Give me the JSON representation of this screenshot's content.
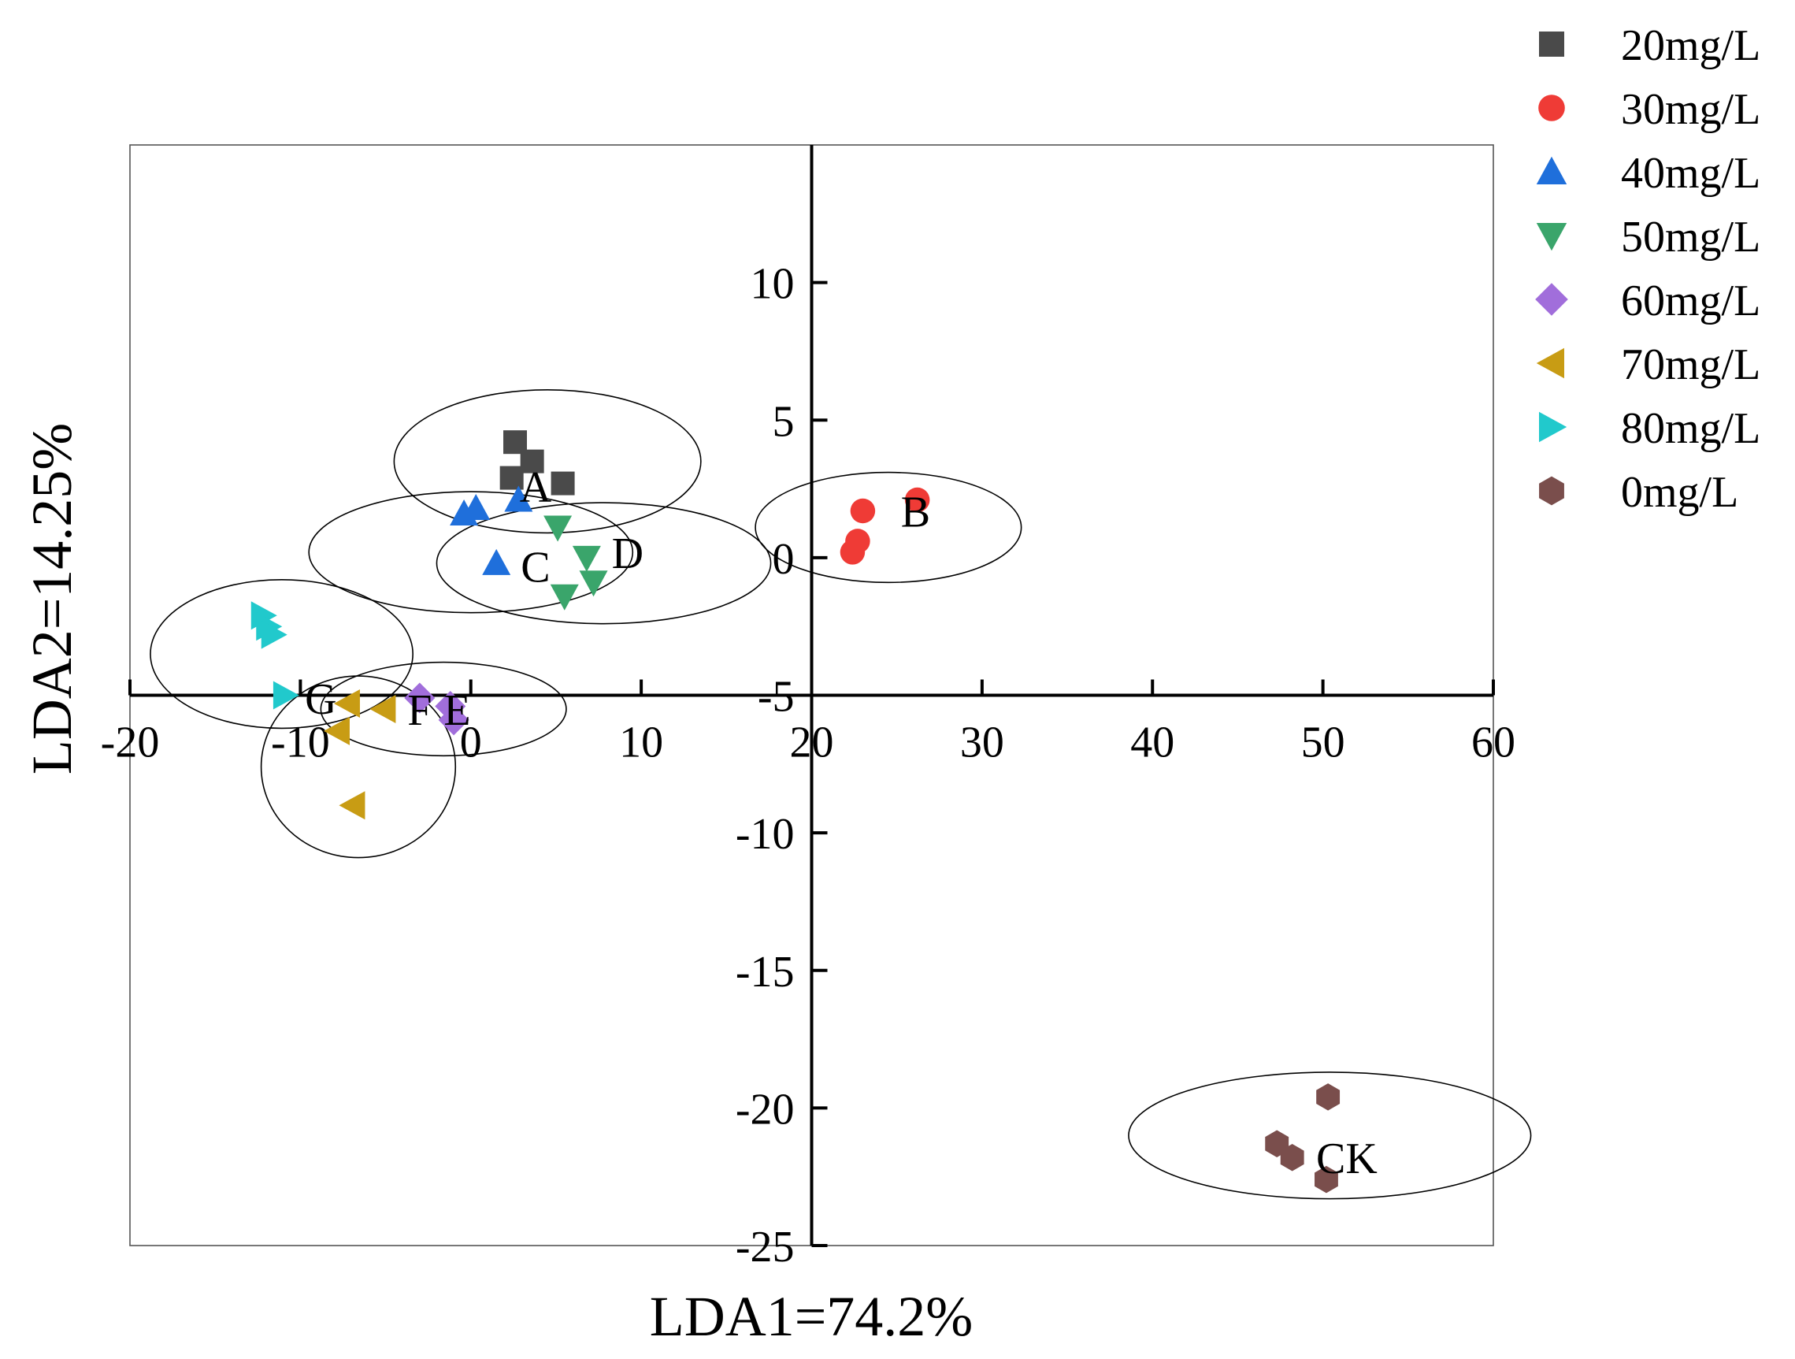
{
  "chart_data": {
    "type": "scatter",
    "xlabel": "LDA1=74.2%",
    "ylabel": "LDA2=14.25%",
    "xlim": [
      -20,
      60
    ],
    "ylim": [
      -25,
      15
    ],
    "x_ticks": [
      -20,
      -10,
      0,
      10,
      20,
      30,
      40,
      50,
      60
    ],
    "y_ticks": [
      -25,
      -20,
      -15,
      -10,
      -5,
      0,
      5,
      10
    ],
    "legend_position": "top-right",
    "series": [
      {
        "name": "20mg/L",
        "color": "#4a4a4a",
        "marker": "square",
        "points": [
          [
            2.6,
            4.2
          ],
          [
            3.6,
            3.5
          ],
          [
            2.4,
            2.9
          ],
          [
            5.4,
            2.7
          ]
        ]
      },
      {
        "name": "30mg/L",
        "color": "#ef3b36",
        "marker": "circle",
        "points": [
          [
            23.0,
            1.7
          ],
          [
            26.2,
            2.1
          ],
          [
            22.7,
            0.6
          ],
          [
            22.4,
            0.2
          ]
        ]
      },
      {
        "name": "40mg/L",
        "color": "#1f6fdb",
        "marker": "triangle-up",
        "points": [
          [
            -0.4,
            1.6
          ],
          [
            0.3,
            1.8
          ],
          [
            2.8,
            2.1
          ],
          [
            1.5,
            -0.2
          ]
        ]
      },
      {
        "name": "50mg/L",
        "color": "#3aa56b",
        "marker": "triangle-down",
        "points": [
          [
            5.1,
            1.1
          ],
          [
            6.8,
            0.0
          ],
          [
            7.2,
            -0.9
          ],
          [
            5.5,
            -1.4
          ]
        ]
      },
      {
        "name": "60mg/L",
        "color": "#a16edb",
        "marker": "diamond",
        "points": [
          [
            -3.0,
            -5.1
          ],
          [
            -1.2,
            -5.4
          ],
          [
            -1.0,
            -5.9
          ]
        ]
      },
      {
        "name": "70mg/L",
        "color": "#c89c14",
        "marker": "triangle-left",
        "points": [
          [
            -7.2,
            -5.3
          ],
          [
            -5.1,
            -5.5
          ],
          [
            -7.8,
            -6.3
          ],
          [
            -6.9,
            -9.0
          ]
        ]
      },
      {
        "name": "80mg/L",
        "color": "#21c9cc",
        "marker": "triangle-right",
        "points": [
          [
            -12.2,
            -2.1
          ],
          [
            -11.9,
            -2.5
          ],
          [
            -11.6,
            -2.8
          ],
          [
            -10.9,
            -5.0
          ]
        ]
      },
      {
        "name": "0mg/L",
        "color": "#7a4e4c",
        "marker": "hexagon",
        "points": [
          [
            50.3,
            -19.6
          ],
          [
            47.3,
            -21.3
          ],
          [
            48.2,
            -21.8
          ],
          [
            50.2,
            -22.6
          ]
        ]
      }
    ],
    "clusters": [
      {
        "label": "A",
        "center": [
          4.5,
          3.5
        ],
        "rx": 9,
        "ry": 2.6,
        "label_at": [
          3.8,
          2.6
        ]
      },
      {
        "label": "B",
        "center": [
          24.5,
          1.1
        ],
        "rx": 7.8,
        "ry": 2.0,
        "label_at": [
          26.1,
          1.7
        ]
      },
      {
        "label": "C",
        "center": [
          0.0,
          0.2
        ],
        "rx": 9.5,
        "ry": 2.2,
        "label_at": [
          3.8,
          -0.3
        ]
      },
      {
        "label": "D",
        "center": [
          7.8,
          -0.2
        ],
        "rx": 9.8,
        "ry": 2.2,
        "label_at": [
          9.2,
          0.2
        ]
      },
      {
        "label": "E",
        "center": [
          -1.6,
          -5.5
        ],
        "rx": 7.2,
        "ry": 1.7,
        "label_at": [
          -0.8,
          -5.5
        ]
      },
      {
        "label": "F",
        "center": [
          -6.6,
          -7.6
        ],
        "rx": 5.7,
        "ry": 3.3,
        "label_at": [
          -3.0,
          -5.5
        ]
      },
      {
        "label": "G",
        "center": [
          -11.1,
          -3.5
        ],
        "rx": 7.7,
        "ry": 2.7,
        "label_at": [
          -8.8,
          -5.1
        ]
      },
      {
        "label": "CK",
        "center": [
          50.4,
          -21.0
        ],
        "rx": 11.8,
        "ry": 2.3,
        "label_at": [
          51.4,
          -21.8
        ]
      }
    ]
  }
}
